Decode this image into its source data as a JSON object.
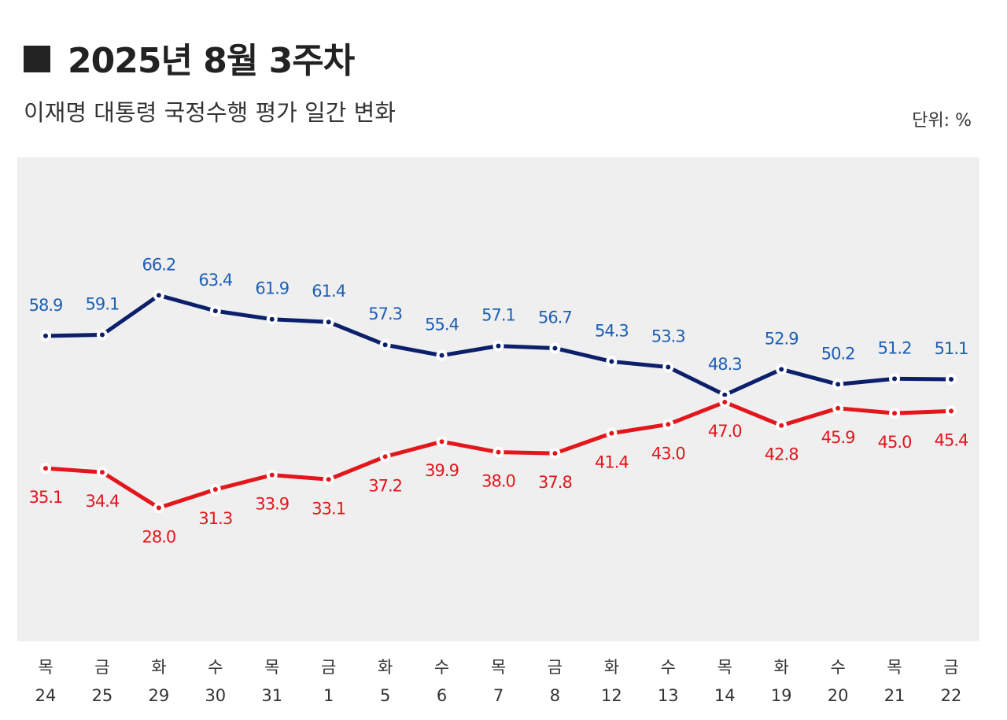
{
  "chart_data": {
    "type": "line",
    "title": "2025년 8월 3주차",
    "subtitle": "이재명 대통령 국정수행 평가 일간 변화",
    "unit": "단위: %",
    "weekdays": [
      "목",
      "금",
      "화",
      "수",
      "목",
      "금",
      "화",
      "수",
      "목",
      "금",
      "화",
      "수",
      "목",
      "화",
      "수",
      "목",
      "금"
    ],
    "categories": [
      "24",
      "25",
      "29",
      "30",
      "31",
      "1",
      "5",
      "6",
      "7",
      "8",
      "12",
      "13",
      "14",
      "19",
      "20",
      "21",
      "22"
    ],
    "ylim": [
      4,
      91
    ],
    "series": [
      {
        "color": "#0b1f6b",
        "label_color": "#1d5fb5",
        "label_position": "above",
        "values": [
          58.9,
          59.1,
          66.2,
          63.4,
          61.9,
          61.4,
          57.3,
          55.4,
          57.1,
          56.7,
          54.3,
          53.3,
          48.3,
          52.9,
          50.2,
          51.2,
          51.1
        ]
      },
      {
        "color": "#e3161c",
        "label_color": "#e3161c",
        "label_position": "below",
        "values": [
          35.1,
          34.4,
          28.0,
          31.3,
          33.9,
          33.1,
          37.2,
          39.9,
          38.0,
          37.8,
          41.4,
          43.0,
          47.0,
          42.8,
          45.9,
          45.0,
          45.4
        ],
        "value_labels": [
          "35.1",
          "34.4",
          "28.0",
          "31.3",
          "33.9",
          "33.1",
          "37.2",
          "39.9",
          "38.0",
          "37.8",
          "41.4",
          "43.0",
          "47.0",
          "42.8",
          "45.9",
          "45.0",
          "45.4"
        ]
      }
    ]
  }
}
